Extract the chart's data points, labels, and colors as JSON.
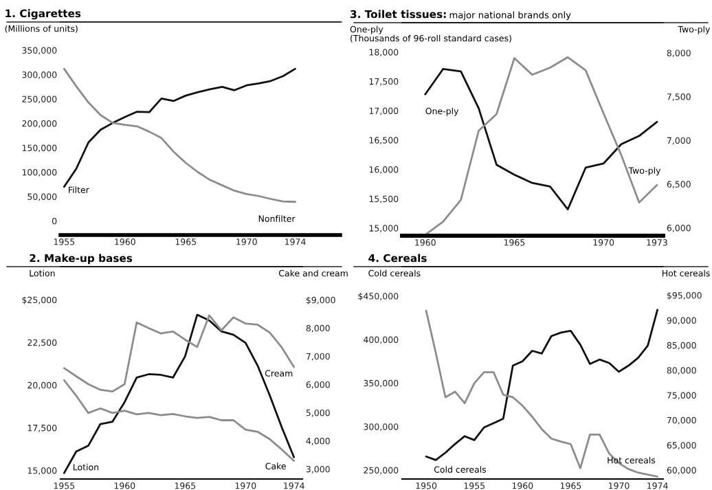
{
  "chart_data": [
    {
      "type": "line",
      "title": "1. Cigarettes",
      "ylabel": "(Millions of units)",
      "legend": false,
      "grid": false,
      "x": [
        1955,
        1956,
        1957,
        1958,
        1959,
        1960,
        1961,
        1962,
        1963,
        1964,
        1965,
        1966,
        1967,
        1968,
        1969,
        1970,
        1971,
        1972,
        1973,
        1974
      ],
      "xlim": [
        1954.7,
        1977.7
      ],
      "xticks": [
        1955,
        1960,
        1965,
        1970,
        1974
      ],
      "ylim": [
        -29000,
        408000
      ],
      "yticks": [
        {
          "value": 0,
          "label": "0"
        },
        {
          "value": 50000,
          "label": "50,000"
        },
        {
          "value": 100000,
          "label": "100,000"
        },
        {
          "value": 150000,
          "label": "150,000"
        },
        {
          "value": 200000,
          "label": "200,000"
        },
        {
          "value": 250000,
          "label": "250,000"
        },
        {
          "value": 300000,
          "label": "300,000"
        },
        {
          "value": 350000,
          "label": "350,000"
        }
      ],
      "series": [
        {
          "name": "Filter",
          "color": "#111111",
          "values": [
            70000,
            107000,
            161000,
            187000,
            201000,
            213000,
            224000,
            223000,
            251000,
            246000,
            257000,
            264000,
            270000,
            275000,
            268000,
            278000,
            282000,
            287000,
            297000,
            312000
          ]
        },
        {
          "name": "Nonfilter",
          "color": "#8c8c8c",
          "values": [
            312000,
            276000,
            243000,
            217000,
            201000,
            197000,
            194000,
            183000,
            170000,
            142000,
            119000,
            100000,
            84000,
            73000,
            62000,
            55000,
            51000,
            45000,
            40000,
            39000
          ]
        }
      ]
    },
    {
      "type": "line",
      "title": "2. Make-up bases",
      "ylabel": "Lotion",
      "y2label": "Cake and cream",
      "legend": false,
      "grid": false,
      "x": [
        1955,
        1956,
        1957,
        1958,
        1959,
        1960,
        1961,
        1962,
        1963,
        1964,
        1965,
        1966,
        1967,
        1968,
        1969,
        1970,
        1971,
        1972,
        1973,
        1974
      ],
      "xlim": [
        1954.7,
        1974.7
      ],
      "xticks": [
        1955,
        1960,
        1965,
        1970,
        1974
      ],
      "ylim": [
        14500,
        26940
      ],
      "yticks": [
        {
          "value": 15000,
          "label": "15,000"
        },
        {
          "value": 17500,
          "label": "17,500"
        },
        {
          "value": 20000,
          "label": "20,000"
        },
        {
          "value": 22500,
          "label": "22,500"
        },
        {
          "value": 25000,
          "label": "$25,000"
        }
      ],
      "y2lim": [
        2645,
        10180
      ],
      "y2ticks": [
        {
          "value": 3000,
          "label": "3,000"
        },
        {
          "value": 4000,
          "label": "4,000"
        },
        {
          "value": 5000,
          "label": "5,000"
        },
        {
          "value": 6000,
          "label": "6,000"
        },
        {
          "value": 7000,
          "label": "7,000"
        },
        {
          "value": 8000,
          "label": "8,000"
        },
        {
          "value": 9000,
          "label": "$9,000"
        }
      ],
      "series": [
        {
          "name": "Lotion",
          "color": "#111111",
          "values": [
            14850,
            16110,
            16450,
            17720,
            17860,
            19000,
            20440,
            20640,
            20600,
            20440,
            21680,
            24120,
            23790,
            23150,
            22950,
            22480,
            21140,
            19400,
            17520,
            15780
          ]
        },
        {
          "name": "Cream",
          "color": "#8c8c8c",
          "axis": "y2",
          "values": [
            6580,
            6290,
            6010,
            5810,
            5750,
            6010,
            8200,
            8000,
            7810,
            7880,
            7590,
            7330,
            8450,
            7920,
            8380,
            8160,
            8120,
            7840,
            7310,
            6620
          ]
        },
        {
          "name": "Cake",
          "color": "#8c8c8c",
          "axis": "y2",
          "values": [
            6150,
            5600,
            4990,
            5150,
            4990,
            5070,
            4940,
            4990,
            4910,
            4950,
            4870,
            4810,
            4850,
            4730,
            4730,
            4400,
            4320,
            4060,
            3690,
            3290
          ]
        }
      ]
    },
    {
      "type": "line",
      "title": "3. Toilet tissues:",
      "subtitle": "major national brands only",
      "ylabel": "One-ply\n(Thousands of 96-roll standard cases)",
      "y2label": "Two-ply",
      "legend": false,
      "grid": false,
      "x": [
        1960,
        1961,
        1962,
        1963,
        1964,
        1965,
        1966,
        1967,
        1968,
        1969,
        1970,
        1971,
        1972,
        1973
      ],
      "xlim": [
        1958.7,
        1973.35
      ],
      "xticks": [
        1960,
        1965,
        1970,
        1973
      ],
      "ylim": [
        14870,
        18500
      ],
      "yticks": [
        {
          "value": 15000,
          "label": "15,000"
        },
        {
          "value": 15500,
          "label": "15,500"
        },
        {
          "value": 16000,
          "label": "16,000"
        },
        {
          "value": 16500,
          "label": "16,500"
        },
        {
          "value": 17000,
          "label": "17,000"
        },
        {
          "value": 17500,
          "label": "17,500"
        },
        {
          "value": 18000,
          "label": "18,000"
        }
      ],
      "y2lim": [
        5910,
        8345
      ],
      "y2ticks": [
        {
          "value": 6000,
          "label": "6,000"
        },
        {
          "value": 6500,
          "label": "6,500"
        },
        {
          "value": 7000,
          "label": "7,000"
        },
        {
          "value": 7500,
          "label": "7,500"
        },
        {
          "value": 8000,
          "label": "8,000"
        }
      ],
      "series": [
        {
          "name": "One-ply",
          "color": "#111111",
          "values": [
            17280,
            17710,
            17670,
            17040,
            16080,
            15910,
            15770,
            15710,
            15320,
            16030,
            16100,
            16430,
            16570,
            16810
          ]
        },
        {
          "name": "Two-ply",
          "color": "#8c8c8c",
          "axis": "y2",
          "values": [
            5920,
            6070,
            6320,
            7110,
            7300,
            7940,
            7750,
            7830,
            7950,
            7800,
            7310,
            6830,
            6290,
            6490
          ]
        }
      ]
    },
    {
      "type": "line",
      "title": "4. Cereals",
      "ylabel": "Cold cereals",
      "y2label": "Hot cereals",
      "legend": false,
      "grid": false,
      "x": [
        1950,
        1951,
        1952,
        1953,
        1954,
        1955,
        1956,
        1957,
        1958,
        1959,
        1960,
        1961,
        1962,
        1963,
        1964,
        1965,
        1966,
        1967,
        1968,
        1969,
        1970,
        1971,
        1972,
        1973,
        1974
      ],
      "xlim": [
        1947.5,
        1974.6
      ],
      "xticks": [
        1950,
        1955,
        1960,
        1965,
        1970,
        1974
      ],
      "ylim": [
        239800,
        483700
      ],
      "yticks": [
        {
          "value": 250000,
          "label": "250,000"
        },
        {
          "value": 300000,
          "label": "300,000"
        },
        {
          "value": 350000,
          "label": "350,000"
        },
        {
          "value": 400000,
          "label": "400,000"
        },
        {
          "value": 450000,
          "label": "$450,000"
        }
      ],
      "y2lim": [
        58220,
        100730
      ],
      "y2ticks": [
        {
          "value": 60000,
          "label": "60,000"
        },
        {
          "value": 65000,
          "label": "65,000"
        },
        {
          "value": 70000,
          "label": "70,000"
        },
        {
          "value": 75000,
          "label": "75,000"
        },
        {
          "value": 80000,
          "label": "80,000"
        },
        {
          "value": 85000,
          "label": "85,000"
        },
        {
          "value": 90000,
          "label": "90,000"
        },
        {
          "value": 95000,
          "label": "$95,000"
        }
      ],
      "series": [
        {
          "name": "Cold cereals",
          "color": "#111111",
          "values": [
            265600,
            261600,
            270000,
            280000,
            289000,
            284500,
            299000,
            304000,
            309000,
            370000,
            375000,
            387000,
            384000,
            404000,
            408000,
            410000,
            394000,
            372000,
            377000,
            373000,
            363000,
            370000,
            379000,
            393000,
            434000
          ]
        },
        {
          "name": "Hot cereals",
          "color": "#8c8c8c",
          "axis": "y2",
          "values": [
            91900,
            83500,
            74600,
            75700,
            73400,
            77400,
            79600,
            79600,
            75100,
            74600,
            72900,
            70700,
            68200,
            66300,
            65700,
            65200,
            60400,
            67100,
            67100,
            63300,
            61400,
            60200,
            59500,
            59100,
            58700
          ]
        }
      ]
    }
  ]
}
